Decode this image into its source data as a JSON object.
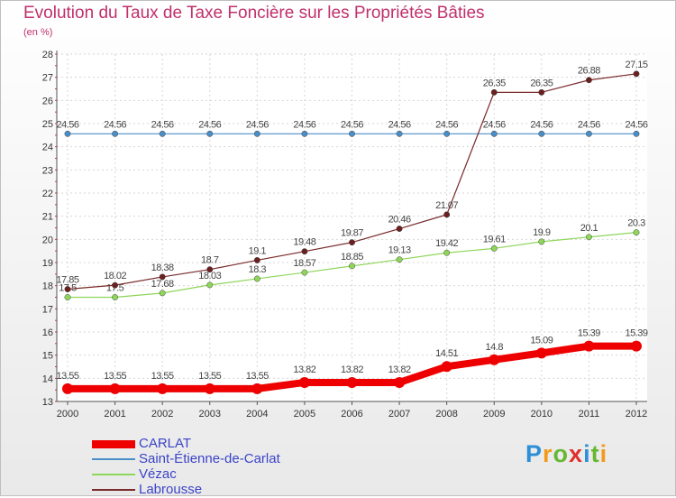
{
  "title": "Evolution du Taux de Taxe Foncière sur les Propriétés Bâties",
  "subtitle": "(en %)",
  "logo": {
    "letters": [
      "P",
      "r",
      "o",
      "x",
      "i",
      "t",
      "i"
    ],
    "colors": [
      "#2d8fd6",
      "#f39a1c",
      "#66b832",
      "#e0302c",
      "#2d8fd6",
      "#66b832",
      "#f39a1c"
    ]
  },
  "chart_data": {
    "type": "line",
    "x": [
      "2000",
      "2001",
      "2002",
      "2003",
      "2004",
      "2005",
      "2006",
      "2007",
      "2008",
      "2009",
      "2010",
      "2011",
      "2012"
    ],
    "ylim": [
      13,
      28
    ],
    "yticks": [
      "13",
      "14",
      "15",
      "16",
      "17",
      "18",
      "19",
      "20",
      "21",
      "22",
      "23",
      "24",
      "25",
      "26",
      "27",
      "28"
    ],
    "grid": true,
    "series": [
      {
        "name": "CARLAT",
        "color": "#ee0000",
        "values": [
          13.55,
          13.55,
          13.55,
          13.55,
          13.55,
          13.82,
          13.82,
          13.82,
          14.51,
          14.8,
          15.09,
          15.39,
          15.39
        ],
        "labels": [
          "13.55",
          "13.55",
          "13.55",
          "13.55",
          "13.55",
          "13.82",
          "13.82",
          "13.82",
          "14.51",
          "14.8",
          "15.09",
          "15.39",
          "15.39"
        ]
      },
      {
        "name": "Saint-Étienne-de-Carlat",
        "color": "#4a8ec8",
        "values": [
          24.56,
          24.56,
          24.56,
          24.56,
          24.56,
          24.56,
          24.56,
          24.56,
          24.56,
          24.56,
          24.56,
          24.56,
          24.56
        ],
        "labels": [
          "24.56",
          "24.56",
          "24.56",
          "24.56",
          "24.56",
          "24.56",
          "24.56",
          "24.56",
          "24.56",
          "24.56",
          "24.56",
          "24.56",
          "24.56"
        ]
      },
      {
        "name": "Vézac",
        "color": "#8ed65a",
        "values": [
          17.5,
          17.5,
          17.68,
          18.03,
          18.3,
          18.57,
          18.85,
          19.13,
          19.42,
          19.61,
          19.9,
          20.1,
          20.3
        ],
        "labels": [
          "17.5",
          "17.5",
          "17.68",
          "18.03",
          "18.3",
          "18.57",
          "18.85",
          "19.13",
          "19.42",
          "19.61",
          "19.9",
          "20.1",
          "20.3"
        ]
      },
      {
        "name": "Labrousse",
        "color": "#7a2a2a",
        "values": [
          17.85,
          18.02,
          18.38,
          18.7,
          19.1,
          19.48,
          19.87,
          20.46,
          21.07,
          26.35,
          26.35,
          26.88,
          27.15
        ],
        "labels": [
          "17.85",
          "18.02",
          "18.38",
          "18.7",
          "19.1",
          "19.48",
          "19.87",
          "20.46",
          "21.07",
          "26.35",
          "26.35",
          "26.88",
          "27.15"
        ]
      }
    ]
  }
}
